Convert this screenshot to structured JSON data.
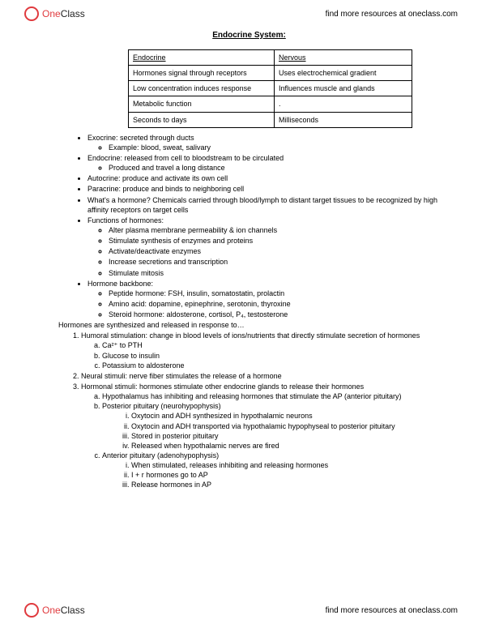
{
  "brand": {
    "one": "One",
    "class": "Class",
    "link": "find more resources at oneclass.com"
  },
  "title": "Endocrine System:",
  "table": {
    "col1_width": 180,
    "col2_width": 170,
    "rows": [
      [
        "Endocrine",
        "Nervous"
      ],
      [
        "Hormones signal through receptors",
        "Uses electrochemical gradient"
      ],
      [
        "Low concentration induces response",
        "Influences muscle and glands"
      ],
      [
        "Metabolic function",
        "."
      ],
      [
        "Seconds to days",
        "Milliseconds"
      ]
    ]
  },
  "bullets": [
    {
      "text": "Exocrine: secreted through ducts",
      "sub": [
        "Example: blood, sweat, salivary"
      ]
    },
    {
      "text": "Endocrine: released from cell to bloodstream to be circulated",
      "sub": [
        "Produced and travel a long distance"
      ]
    },
    {
      "text": "Autocrine: produce and activate its own cell"
    },
    {
      "text": "Paracrine: produce and binds to neighboring cell"
    },
    {
      "text": "What's a hormone? Chemicals carried through blood/lymph to distant target tissues to be recognized by high affinity receptors on target cells"
    },
    {
      "text": "Functions of hormones:",
      "sub": [
        "Alter plasma membrane permeability & ion channels",
        "Stimulate synthesis of enzymes and proteins",
        "Activate/deactivate enzymes",
        "Increase secretions and transcription",
        "Stimulate mitosis"
      ]
    },
    {
      "text": "Hormone backbone:",
      "sub": [
        "Peptide hormone: FSH, insulin, somatostatin, prolactin",
        "Amino acid: dopamine, epinephrine, serotonin, thyroxine",
        "Steroid hormone: aldosterone, cortisol, P₄, testosterone"
      ]
    }
  ],
  "lead": "Hormones are synthesized and released in response to…",
  "numbered": [
    {
      "text": "Humoral stimulation: change in blood levels of ions/nutrients that directly stimulate secretion of hormones",
      "alpha": [
        {
          "text": "Ca²⁺ to PTH"
        },
        {
          "text": "Glucose to insulin"
        },
        {
          "text": "Potassium to aldosterone"
        }
      ]
    },
    {
      "text": "Neural stimuli: nerve fiber stimulates the release of a hormone"
    },
    {
      "text": "Hormonal stimuli: hormones stimulate other endocrine glands to release their hormones",
      "alpha": [
        {
          "text": "Hypothalamus has inhibiting and releasing hormones that stimulate the AP (anterior pituitary)"
        },
        {
          "text": "Posterior pituitary (neurohypophysis)",
          "roman": [
            "Oxytocin and ADH synthesized in hypothalamic neurons",
            "Oxytocin and ADH transported via hypothalamic hypophyseal to posterior pituitary",
            "Stored in posterior pituitary",
            "Released when hypothalamic nerves are fired"
          ]
        },
        {
          "text": "Anterior pituitary (adenohypophysis)",
          "roman": [
            "When stimulated, releases inhibiting and releasing hormones",
            "I + r hormones go to AP",
            "Release hormones in AP"
          ]
        }
      ]
    }
  ]
}
